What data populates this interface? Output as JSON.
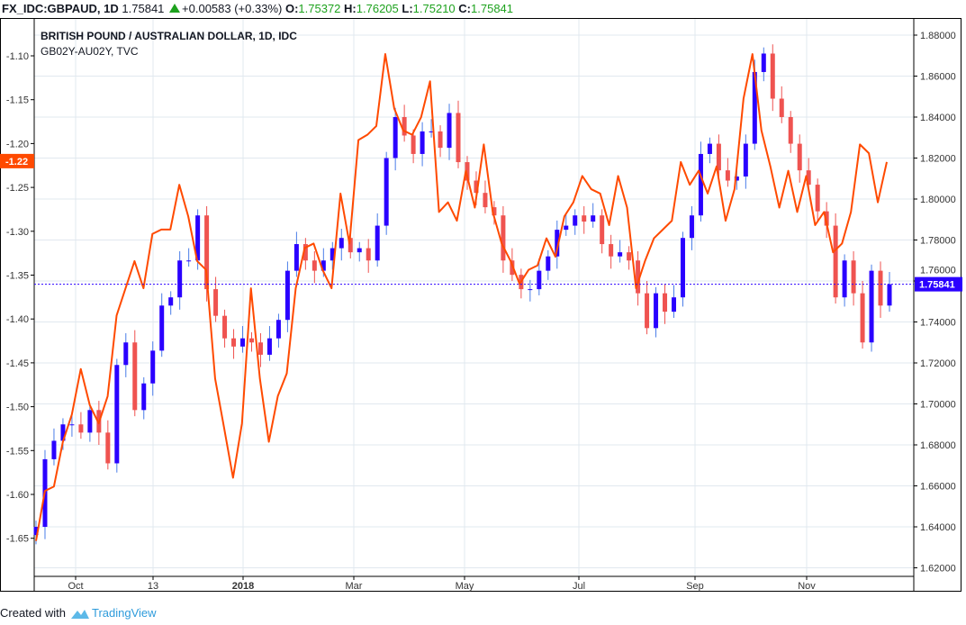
{
  "header": {
    "symbol": "FX_IDC:GBPAUD, 1D",
    "last": "1.75841",
    "change": "+0.00583 (+0.33%)",
    "o_label": "O:",
    "o": "1.75372",
    "h_label": "H:",
    "h": "1.76205",
    "l_label": "L:",
    "l": "1.75210",
    "c_label": "C:",
    "c": "1.75841"
  },
  "footer": {
    "created": "Created with",
    "brand": "TradingView"
  },
  "colors": {
    "up": "#2a00ff",
    "down": "#ef5350",
    "spread": "#ff4a00",
    "grid": "#e1e8ef",
    "price_line": "#2a00ff",
    "change_up": "#1ea21e"
  },
  "chart_data": {
    "type": "candlestick+line",
    "title": "BRITISH POUND / AUSTRALIAN DOLLAR, 1D, IDC",
    "subtitle": "GB02Y-AU02Y, TVC",
    "x_ticks": [
      "Oct",
      "13",
      "2018",
      "Mar",
      "May",
      "Jul",
      "Sep",
      "Nov"
    ],
    "right_axis": {
      "ticks": [
        "1.88000",
        "1.86000",
        "1.84000",
        "1.82000",
        "1.80000",
        "1.78000",
        "1.76000",
        "1.74000",
        "1.72000",
        "1.70000",
        "1.68000",
        "1.66000",
        "1.64000",
        "1.62000"
      ],
      "range": [
        1.62,
        1.88
      ]
    },
    "left_axis": {
      "ticks": [
        "-1.10",
        "-1.15",
        "-1.20",
        "-1.25",
        "-1.30",
        "-1.35",
        "-1.40",
        "-1.45",
        "-1.50",
        "-1.55",
        "-1.60",
        "-1.65"
      ],
      "range": [
        -1.67,
        -1.085
      ]
    },
    "grid": true,
    "last_price_label": "1.75841",
    "last_spread_label": "-1.22",
    "series": [
      {
        "name": "GBPAUD",
        "axis": "right",
        "style": "candles",
        "close": [
          1.64,
          1.673,
          1.682,
          1.69,
          1.69,
          1.686,
          1.697,
          1.686,
          1.671,
          1.719,
          1.73,
          1.697,
          1.71,
          1.726,
          1.748,
          1.752,
          1.77,
          1.77,
          1.792,
          1.756,
          1.743,
          1.732,
          1.728,
          1.732,
          1.73,
          1.724,
          1.732,
          1.741,
          1.765,
          1.778,
          1.77,
          1.765,
          1.77,
          1.776,
          1.781,
          1.774,
          1.776,
          1.77,
          1.787,
          1.82,
          1.84,
          1.831,
          1.822,
          1.833,
          1.833,
          1.825,
          1.842,
          1.818,
          1.809,
          1.803,
          1.796,
          1.792,
          1.77,
          1.763,
          1.756,
          1.756,
          1.765,
          1.772,
          1.785,
          1.787,
          1.792,
          1.789,
          1.792,
          1.778,
          1.772,
          1.774,
          1.77,
          1.754,
          1.737,
          1.754,
          1.745,
          1.752,
          1.781,
          1.792,
          1.822,
          1.827,
          1.814,
          1.809,
          1.811,
          1.827,
          1.862,
          1.871,
          1.849,
          1.84,
          1.827,
          1.814,
          1.807,
          1.794,
          1.787,
          1.752,
          1.77,
          1.754,
          1.73,
          1.765,
          1.748,
          1.7584
        ]
      },
      {
        "name": "GB02Y-AU02Y",
        "axis": "left",
        "style": "line",
        "values": [
          -1.653,
          -1.596,
          -1.591,
          -1.54,
          -1.509,
          -1.457,
          -1.498,
          -1.519,
          -1.488,
          -1.396,
          -1.365,
          -1.334,
          -1.365,
          -1.303,
          -1.298,
          -1.298,
          -1.247,
          -1.283,
          -1.334,
          -1.344,
          -1.468,
          -1.524,
          -1.581,
          -1.519,
          -1.365,
          -1.468,
          -1.54,
          -1.488,
          -1.462,
          -1.365,
          -1.319,
          -1.314,
          -1.344,
          -1.365,
          -1.257,
          -1.314,
          -1.196,
          -1.19,
          -1.18,
          -1.098,
          -1.16,
          -1.185,
          -1.19,
          -1.17,
          -1.129,
          -1.278,
          -1.267,
          -1.288,
          -1.231,
          -1.273,
          -1.201,
          -1.278,
          -1.314,
          -1.334,
          -1.36,
          -1.344,
          -1.339,
          -1.308,
          -1.329,
          -1.283,
          -1.267,
          -1.237,
          -1.252,
          -1.257,
          -1.293,
          -1.237,
          -1.273,
          -1.365,
          -1.334,
          -1.308,
          -1.298,
          -1.288,
          -1.221,
          -1.247,
          -1.231,
          -1.257,
          -1.226,
          -1.288,
          -1.252,
          -1.149,
          -1.098,
          -1.185,
          -1.226,
          -1.273,
          -1.231,
          -1.278,
          -1.237,
          -1.293,
          -1.278,
          -1.324,
          -1.314,
          -1.278,
          -1.201,
          -1.211,
          -1.267,
          -1.221
        ]
      }
    ]
  }
}
